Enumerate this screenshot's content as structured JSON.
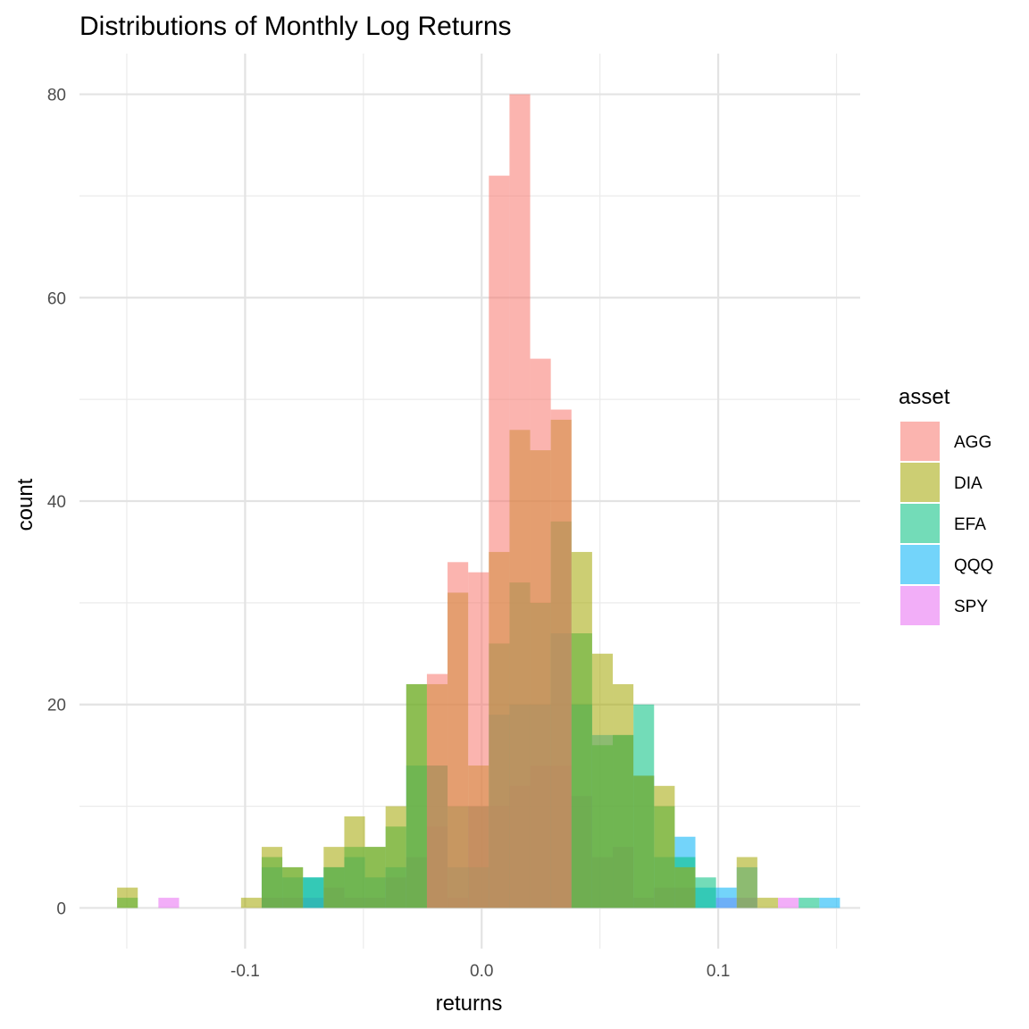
{
  "chart_data": {
    "type": "bar",
    "subtype": "overlaid-histogram",
    "title": "Distributions of Monthly Log Returns",
    "xlabel": "returns",
    "ylabel": "count",
    "xlim": [
      -0.17,
      0.16
    ],
    "ylim": [
      -4,
      84
    ],
    "x_ticks": [
      {
        "value": -0.1,
        "label": "-0.1"
      },
      {
        "value": 0.0,
        "label": "0.0"
      },
      {
        "value": 0.1,
        "label": "0.1"
      }
    ],
    "x_minor": [
      -0.15,
      -0.05,
      0.05,
      0.15
    ],
    "y_ticks": [
      {
        "value": 0,
        "label": "0"
      },
      {
        "value": 20,
        "label": "20"
      },
      {
        "value": 40,
        "label": "40"
      },
      {
        "value": 60,
        "label": "60"
      },
      {
        "value": 80,
        "label": "80"
      }
    ],
    "y_minor": [
      10,
      30,
      50,
      70
    ],
    "grid": true,
    "bar_opacity": 0.55,
    "bin_start": -0.1541,
    "bin_width": 0.00873,
    "legend": {
      "title": "asset",
      "position": "right"
    },
    "series": [
      {
        "name": "AGG",
        "color": "#F8766D",
        "bins": [
          [
            15,
            23
          ],
          [
            16,
            34
          ],
          [
            17,
            33
          ],
          [
            18,
            72
          ],
          [
            19,
            80
          ],
          [
            20,
            54
          ],
          [
            21,
            49
          ]
        ]
      },
      {
        "name": "DIA",
        "color": "#A3A500",
        "bins": [
          [
            0,
            2
          ],
          [
            6,
            1
          ],
          [
            7,
            6
          ],
          [
            8,
            4
          ],
          [
            10,
            6
          ],
          [
            11,
            9
          ],
          [
            12,
            6
          ],
          [
            13,
            10
          ],
          [
            14,
            22
          ],
          [
            15,
            22
          ],
          [
            16,
            31
          ],
          [
            17,
            14
          ],
          [
            18,
            35
          ],
          [
            19,
            47
          ],
          [
            20,
            45
          ],
          [
            21,
            48
          ],
          [
            22,
            35
          ],
          [
            23,
            25
          ],
          [
            24,
            22
          ],
          [
            25,
            13
          ],
          [
            26,
            12
          ],
          [
            27,
            4
          ],
          [
            30,
            5
          ],
          [
            31,
            1
          ]
        ]
      },
      {
        "name": "EFA",
        "color": "#00BF7D",
        "bins": [
          [
            0,
            1
          ],
          [
            7,
            5
          ],
          [
            8,
            4
          ],
          [
            9,
            3
          ],
          [
            10,
            4
          ],
          [
            11,
            6
          ],
          [
            12,
            6
          ],
          [
            13,
            8
          ],
          [
            14,
            22
          ],
          [
            15,
            14
          ],
          [
            16,
            10
          ],
          [
            17,
            10
          ],
          [
            18,
            26
          ],
          [
            19,
            32
          ],
          [
            20,
            30
          ],
          [
            21,
            38
          ],
          [
            22,
            27
          ],
          [
            23,
            16
          ],
          [
            24,
            17
          ],
          [
            25,
            20
          ],
          [
            26,
            10
          ],
          [
            27,
            5
          ],
          [
            28,
            3
          ],
          [
            33,
            1
          ]
        ]
      },
      {
        "name": "QQQ",
        "color": "#00B0F6",
        "bins": [
          [
            7,
            4
          ],
          [
            8,
            3
          ],
          [
            9,
            3
          ],
          [
            10,
            4
          ],
          [
            11,
            5
          ],
          [
            12,
            3
          ],
          [
            13,
            4
          ],
          [
            14,
            14
          ],
          [
            15,
            14
          ],
          [
            16,
            4
          ],
          [
            17,
            4
          ],
          [
            18,
            19
          ],
          [
            19,
            20
          ],
          [
            20,
            20
          ],
          [
            21,
            27
          ],
          [
            22,
            20
          ],
          [
            23,
            17
          ],
          [
            24,
            17
          ],
          [
            25,
            13
          ],
          [
            26,
            5
          ],
          [
            27,
            7
          ],
          [
            28,
            2
          ],
          [
            29,
            2
          ],
          [
            30,
            4
          ],
          [
            34,
            1
          ]
        ]
      },
      {
        "name": "SPY",
        "color": "#E76BF3",
        "bins": [
          [
            2,
            1
          ],
          [
            7,
            1
          ],
          [
            8,
            1
          ],
          [
            9,
            1
          ],
          [
            10,
            2
          ],
          [
            11,
            1
          ],
          [
            12,
            1
          ],
          [
            13,
            3
          ],
          [
            14,
            5
          ],
          [
            15,
            8
          ],
          [
            16,
            1
          ],
          [
            17,
            10
          ],
          [
            18,
            10
          ],
          [
            19,
            12
          ],
          [
            20,
            14
          ],
          [
            21,
            14
          ],
          [
            22,
            11
          ],
          [
            23,
            5
          ],
          [
            24,
            6
          ],
          [
            25,
            1
          ],
          [
            26,
            2
          ],
          [
            27,
            2
          ],
          [
            29,
            1
          ],
          [
            30,
            1
          ],
          [
            32,
            1
          ]
        ]
      }
    ]
  }
}
